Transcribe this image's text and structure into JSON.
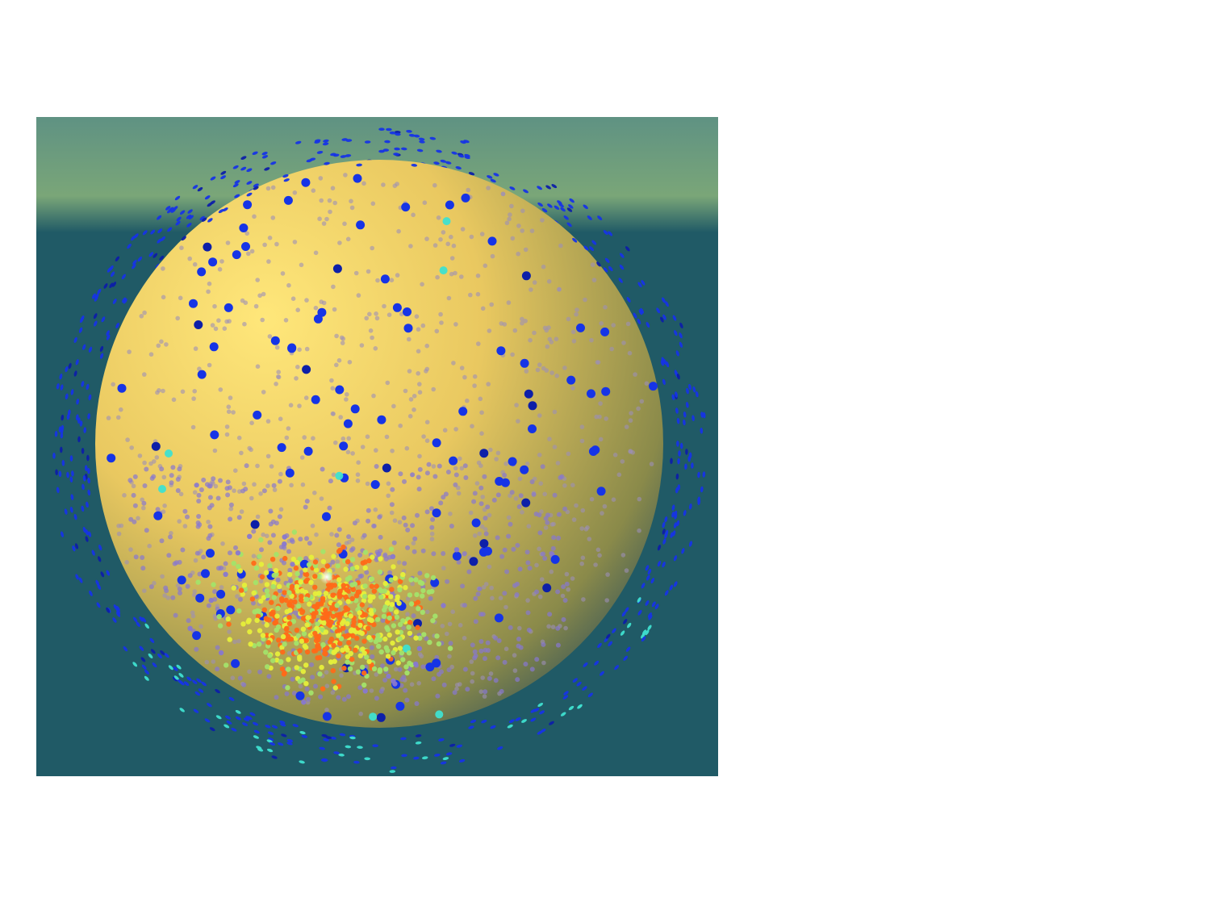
{
  "scene": {
    "type": "3d-render",
    "subject": "sphere-with-particles",
    "colors": {
      "sky_top": "#5f9283",
      "horizon_glow": "#7aa678",
      "ground": "#205a66",
      "sphere_highlight": "#ffe77a",
      "sphere_mid": "#e9c860",
      "sphere_shadow": "#8a8a4a",
      "sphere_rim": "#3f5a56"
    },
    "particle_palette": {
      "blue": "#1634e6",
      "dark_blue": "#0d1fa8",
      "lavender": "#9c8fb8",
      "purple": "#8878d0",
      "green": "#a3e36a",
      "yellow": "#e6ef3a",
      "orange": "#ff6a18",
      "cyan": "#3fe0d0",
      "white": "#ffffff"
    }
  }
}
